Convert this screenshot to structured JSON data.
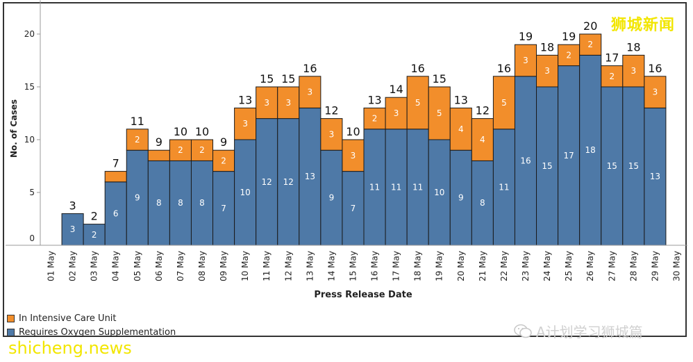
{
  "chart_data": {
    "type": "bar",
    "stacked": true,
    "xlabel": "Press Release Date",
    "ylabel": "No. of Cases",
    "ylim": [
      0,
      23
    ],
    "yticks": [
      0,
      5,
      10,
      15,
      20
    ],
    "categories": [
      "01 May",
      "02 May",
      "03 May",
      "04 May",
      "05 May",
      "06 May",
      "07 May",
      "08 May",
      "09 May",
      "10 May",
      "11 May",
      "12 May",
      "13 May",
      "14 May",
      "15 May",
      "16 May",
      "17 May",
      "18 May",
      "19 May",
      "20 May",
      "21 May",
      "22 May",
      "23 May",
      "24 May",
      "25 May",
      "26 May",
      "27 May",
      "28 May",
      "29 May",
      "30 May"
    ],
    "series": [
      {
        "name": "Requires Oxygen Supplementation",
        "color": "#4e79a7",
        "values": [
          0,
          3,
          2,
          6,
          9,
          8,
          8,
          8,
          7,
          10,
          12,
          12,
          13,
          9,
          7,
          11,
          11,
          11,
          10,
          9,
          8,
          11,
          16,
          15,
          17,
          18,
          15,
          15,
          13,
          null
        ]
      },
      {
        "name": "In Intensive Care Unit",
        "color": "#f28e2b",
        "values": [
          0,
          0,
          0,
          1,
          2,
          1,
          2,
          2,
          2,
          3,
          3,
          3,
          3,
          3,
          3,
          2,
          3,
          5,
          5,
          4,
          4,
          5,
          3,
          3,
          2,
          2,
          2,
          3,
          3,
          null
        ]
      }
    ],
    "totals": [
      null,
      3,
      2,
      7,
      11,
      9,
      10,
      10,
      9,
      13,
      15,
      15,
      16,
      12,
      10,
      13,
      14,
      16,
      15,
      13,
      12,
      16,
      19,
      18,
      19,
      20,
      17,
      18,
      16,
      null
    ],
    "grid": false,
    "legend_position": "bottom-left"
  },
  "watermarks": {
    "top_right": "狮城新闻",
    "bottom_left": "shicheng.news",
    "bottom_right": "A计划学习狮城篇"
  },
  "colors": {
    "oxygen": "#4e79a7",
    "icu": "#f28e2b"
  }
}
